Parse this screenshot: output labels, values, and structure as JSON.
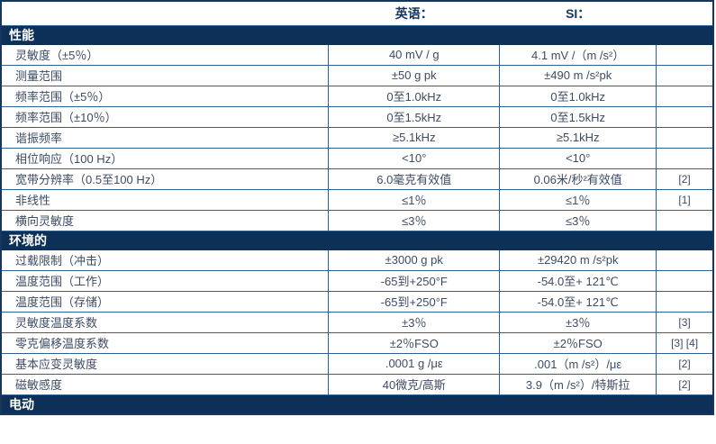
{
  "colors": {
    "section_bar": "#0c3057",
    "border": "#2e6191",
    "outer_border": "#17365d",
    "text": "#3d4c63",
    "header_text": "#17365d",
    "section_text": "#ffffff",
    "background": "#ffffff"
  },
  "header": {
    "col_english": "英语：",
    "col_si": "SI："
  },
  "sections": [
    {
      "title": "性能"
    },
    {
      "title": "环境的"
    },
    {
      "title": "电动"
    }
  ],
  "rows": [
    {
      "label": "灵敏度（±5％）",
      "english": "40 mV / g",
      "si": "4.1 mV /（m /s²）",
      "note": ""
    },
    {
      "label": "测量范围",
      "english": "±50 g pk",
      "si": "±490 m /s²pk",
      "note": ""
    },
    {
      "label": "频率范围（±5％）",
      "english": "0至1.0kHz",
      "si": "0至1.0kHz",
      "note": ""
    },
    {
      "label": "频率范围（±10％）",
      "english": "0至1.5kHz",
      "si": "0至1.5kHz",
      "note": ""
    },
    {
      "label": "谐振频率",
      "english": "≥5.1kHz",
      "si": "≥5.1kHz",
      "note": ""
    },
    {
      "label": "相位响应（100 Hz）",
      "english": "<10°",
      "si": "<10°",
      "note": ""
    },
    {
      "label": "宽带分辨率（0.5至100 Hz）",
      "english": "6.0毫克有效值",
      "si": "0.06米/秒²有效值",
      "note": "[2]"
    },
    {
      "label": "非线性",
      "english": "≤1％",
      "si": "≤1％",
      "note": "[1]"
    },
    {
      "label": "横向灵敏度",
      "english": "≤3％",
      "si": "≤3％",
      "note": ""
    },
    {
      "label": "过载限制（冲击）",
      "english": "±3000 g pk",
      "si": "±29420 m /s²pk",
      "note": ""
    },
    {
      "label": "温度范围（工作）",
      "english": "-65到+250°F",
      "si": "-54.0至+ 121℃",
      "note": ""
    },
    {
      "label": "温度范围（存储）",
      "english": "-65到+250°F",
      "si": "-54.0至+ 121℃",
      "note": ""
    },
    {
      "label": "灵敏度温度系数",
      "english": "±3％",
      "si": "±3％",
      "note": "[3]"
    },
    {
      "label": "零克偏移温度系数",
      "english": "±2％FSO",
      "si": "±2％FSO",
      "note": "[3] [4]"
    },
    {
      "label": "基本应变灵敏度",
      "english": ".0001 g /με",
      "si": ".001（m /s²）/με",
      "note": "[2]"
    },
    {
      "label": "磁敏感度",
      "english": "40微克/高斯",
      "si": "3.9（m /s²）/特斯拉",
      "note": "[2]"
    }
  ]
}
